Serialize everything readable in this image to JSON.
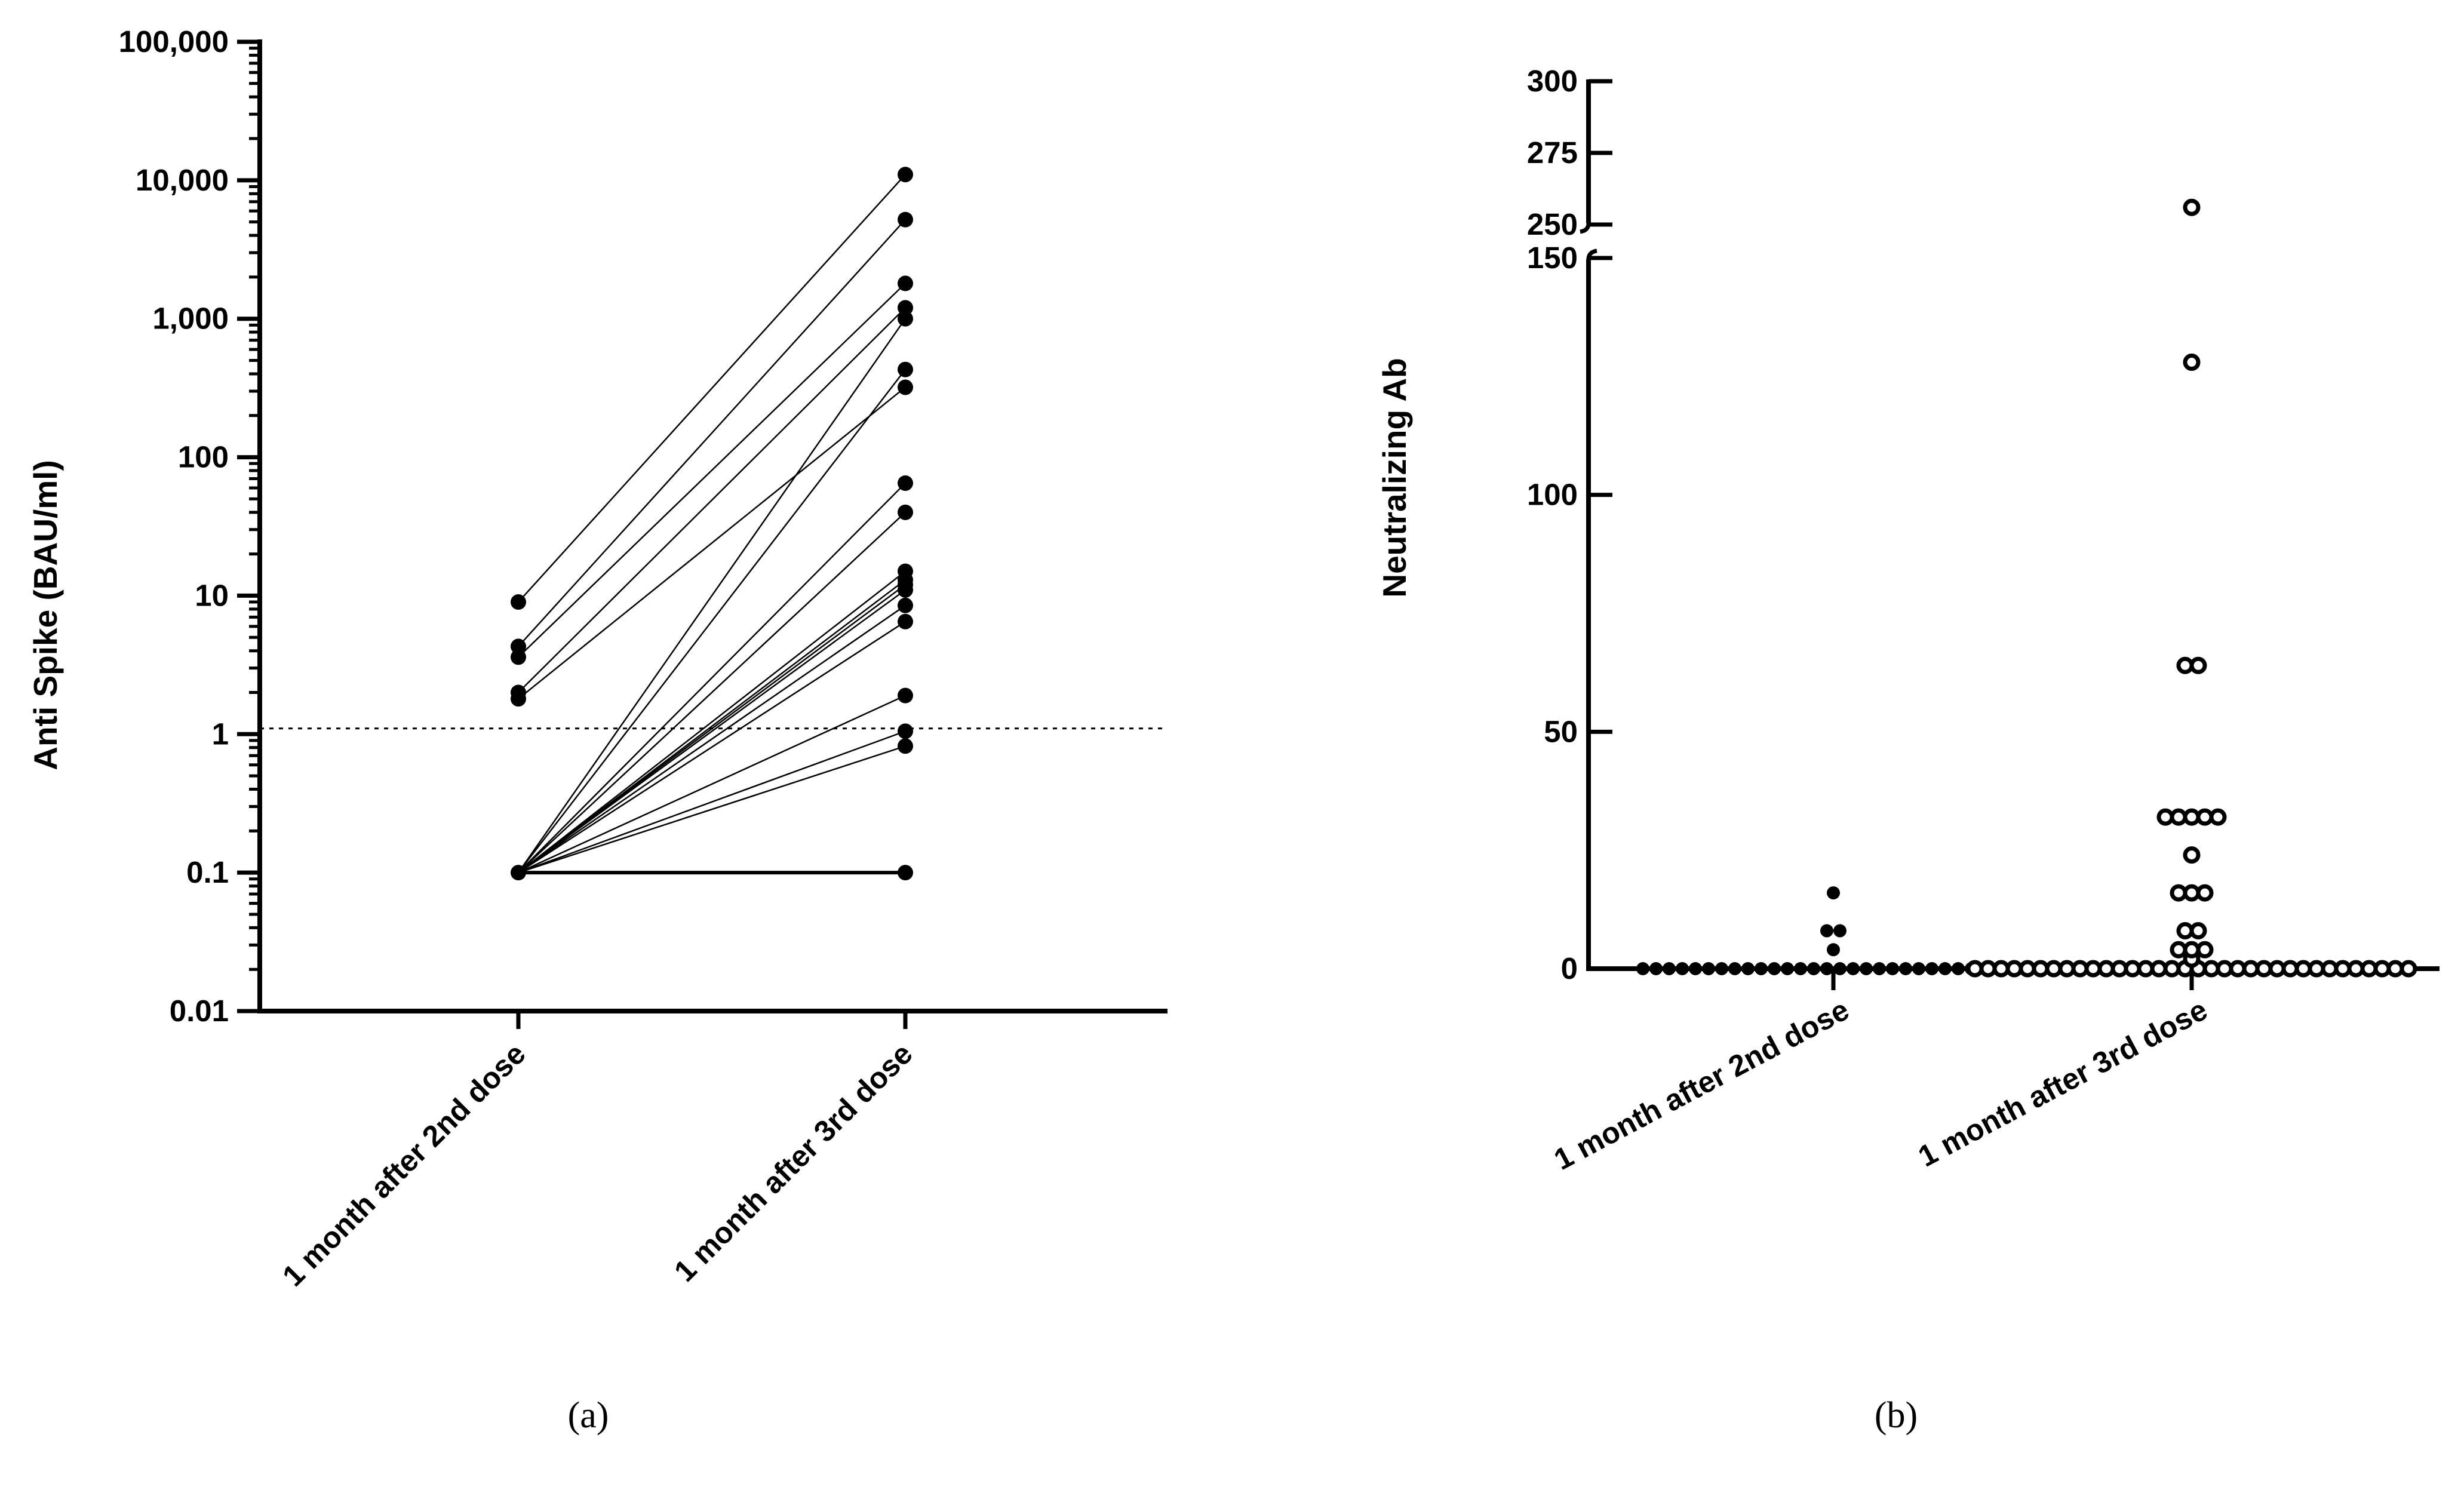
{
  "chart_data": [
    {
      "id": "a",
      "type": "line",
      "subtype": "paired-dot-plot-log",
      "panel_label": "(a)",
      "title": "",
      "ylabel": "Anti Spike (BAU/ml)",
      "yscale": "log",
      "ylim": [
        0.01,
        100000
      ],
      "yticks": [
        {
          "value": 0.01,
          "label": "0.01"
        },
        {
          "value": 0.1,
          "label": "0.1"
        },
        {
          "value": 1,
          "label": "1"
        },
        {
          "value": 10,
          "label": "10"
        },
        {
          "value": 100,
          "label": "100"
        },
        {
          "value": 1000,
          "label": "1,000"
        },
        {
          "value": 10000,
          "label": "10,000"
        },
        {
          "value": 100000,
          "label": "100,000"
        }
      ],
      "categories": [
        "1 month after 2nd dose",
        "1 month after 3rd dose"
      ],
      "threshold": 1.1,
      "pairs": [
        [
          9.0,
          11000
        ],
        [
          4.3,
          5200
        ],
        [
          3.6,
          1800
        ],
        [
          2.0,
          1200
        ],
        [
          1.8,
          320
        ],
        [
          0.1,
          1000
        ],
        [
          0.1,
          430
        ],
        [
          0.1,
          65
        ],
        [
          0.1,
          40
        ],
        [
          0.1,
          15
        ],
        [
          0.1,
          13
        ],
        [
          0.1,
          12
        ],
        [
          0.1,
          11
        ],
        [
          0.1,
          8.5
        ],
        [
          0.1,
          6.5
        ],
        [
          0.1,
          1.9
        ],
        [
          0.1,
          1.05
        ],
        [
          0.1,
          0.82
        ],
        [
          0.1,
          0.1
        ]
      ]
    },
    {
      "id": "b",
      "type": "scatter",
      "subtype": "broken-axis-dot-plot",
      "panel_label": "(b)",
      "title": "",
      "ylabel": "Neutralizing Ab",
      "ylim_lower": [
        0,
        150
      ],
      "ylim_upper": [
        250,
        300
      ],
      "yticks_lower": [
        {
          "value": 0,
          "label": "0"
        },
        {
          "value": 50,
          "label": "50"
        },
        {
          "value": 100,
          "label": "100"
        },
        {
          "value": 150,
          "label": "150"
        }
      ],
      "yticks_upper": [
        {
          "value": 250,
          "label": "250"
        },
        {
          "value": 275,
          "label": "275"
        },
        {
          "value": 300,
          "label": "300"
        }
      ],
      "categories": [
        "1 month after  2nd dose",
        "1 month after 3rd dose"
      ],
      "series": [
        {
          "name": "1 month after  2nd dose",
          "marker": "filled",
          "nonzero_values": [
            16,
            8,
            8,
            4
          ],
          "zero_count": 30
        },
        {
          "name": "1 month after 3rd dose",
          "marker": "open",
          "nonzero_values": [
            256,
            128,
            64,
            64,
            32,
            32,
            32,
            32,
            32,
            24,
            16,
            16,
            16,
            8,
            8,
            4,
            4,
            4,
            2
          ],
          "zero_count": 34
        }
      ]
    }
  ]
}
